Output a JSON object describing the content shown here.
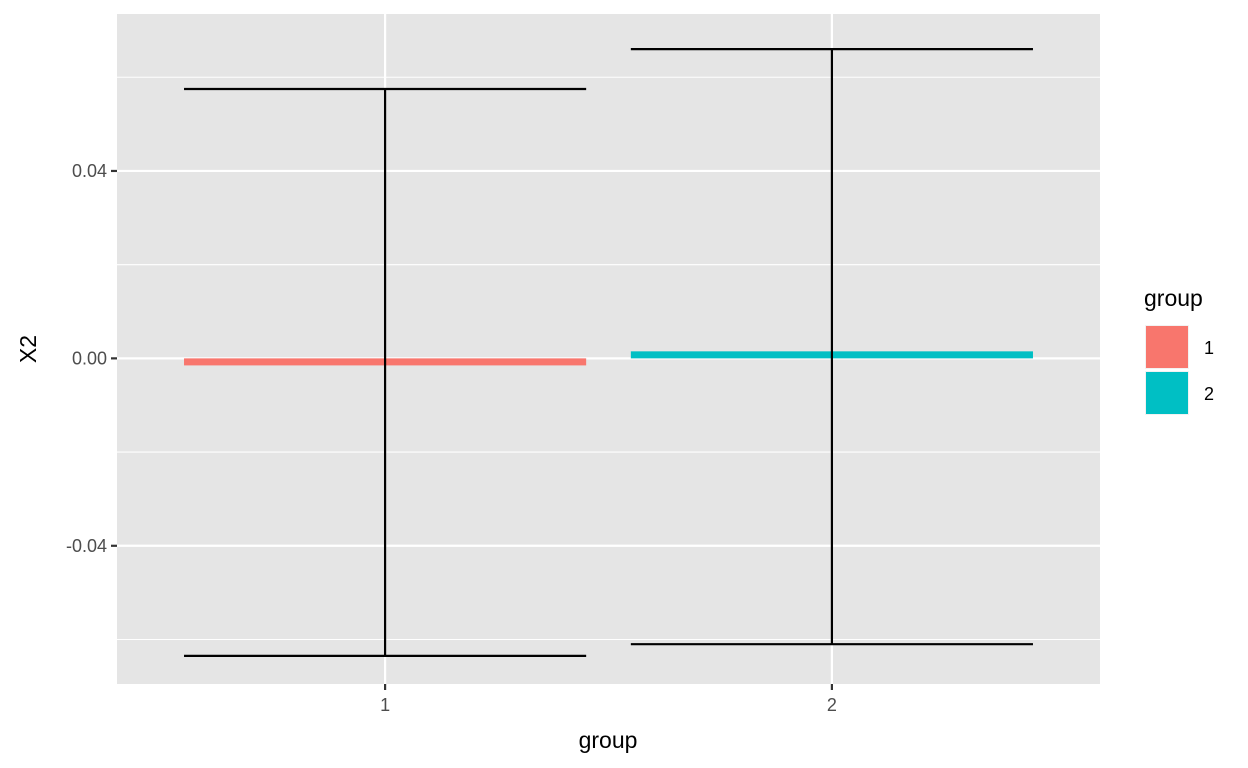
{
  "chart_data": {
    "type": "bar",
    "categories": [
      "1",
      "2"
    ],
    "values": [
      -0.0015,
      0.0015
    ],
    "error_bars": [
      {
        "category": "1",
        "lower": -0.0635,
        "upper": 0.0575
      },
      {
        "category": "2",
        "lower": -0.061,
        "upper": 0.066
      }
    ],
    "xlabel": "group",
    "ylabel": "X2",
    "ylim": [
      -0.0695,
      0.0735
    ],
    "y_ticks": [
      -0.04,
      0.0,
      0.04
    ],
    "y_tick_labels": [
      "-0.04",
      "0.00",
      "0.04"
    ],
    "grid": true,
    "legend": {
      "title": "group",
      "position": "right",
      "entries": [
        {
          "label": "1",
          "color": "#F8766D"
        },
        {
          "label": "2",
          "color": "#00BFC4"
        }
      ]
    },
    "colors": {
      "panel_background": "#E5E5E5",
      "grid_line": "#FFFFFF",
      "error_bar": "#000000"
    }
  }
}
